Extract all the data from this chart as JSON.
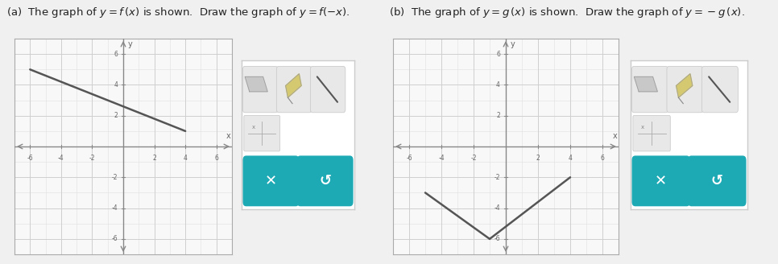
{
  "panel_a": {
    "fx_line": [
      [
        -6,
        5
      ],
      [
        4,
        1
      ]
    ],
    "xlim": [
      -7,
      7
    ],
    "ylim": [
      -7,
      7
    ],
    "xticks": [
      -6,
      -4,
      -2,
      2,
      4,
      6
    ],
    "yticks": [
      -6,
      -4,
      -2,
      2,
      4,
      6
    ],
    "line_color": "#555555",
    "title": "(a)  The graph of $y=f\\,(x)$ is shown.  Draw the graph of $y=f(-x)$."
  },
  "panel_b": {
    "gx_segments": [
      [
        [
          -5,
          -3
        ],
        [
          -1,
          -6
        ]
      ],
      [
        [
          -1,
          -6
        ],
        [
          4,
          -2
        ]
      ]
    ],
    "xlim": [
      -7,
      7
    ],
    "ylim": [
      -7,
      7
    ],
    "xticks": [
      -6,
      -4,
      -2,
      2,
      4,
      6
    ],
    "yticks": [
      -6,
      -4,
      -2,
      2,
      4,
      6
    ],
    "line_color": "#555555",
    "title": "(b)  The graph of $y=g\\,(x)$ is shown.  Draw the graph of $y=-g\\,(x)$."
  },
  "bg_color": "#f0f0f0",
  "graph_bg": "#f8f8f8",
  "grid_major_color": "#d0d0d0",
  "grid_minor_color": "#e0e0e0",
  "axis_color": "#888888",
  "line_color": "#555555",
  "tool_bg": "#ffffff",
  "tool_border": "#cccccc",
  "button_color": "#1eaab5",
  "icon_bg": "#e8e8e8",
  "icon_border": "#cccccc",
  "tick_label_color": "#666666",
  "title_color": "#222222",
  "title_fontsize": 9.5
}
